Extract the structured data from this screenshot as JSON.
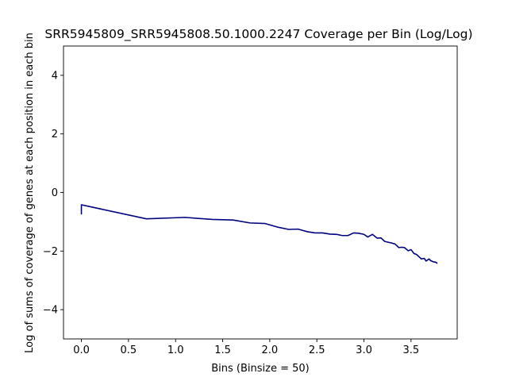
{
  "chart_data": {
    "type": "line",
    "title": "SRR5945809_SRR5945808.50.1000.2247 Coverage per Bin (Log/Log)",
    "xlabel": "Bins (Binsize = 50)",
    "ylabel": "Log of sums of coverage of genes at each position in each bin",
    "xlim": [
      -0.19,
      3.99
    ],
    "ylim": [
      -5,
      5
    ],
    "xticks": [
      0.0,
      0.5,
      1.0,
      1.5,
      2.0,
      2.5,
      3.0,
      3.5
    ],
    "xtick_labels": [
      "0.0",
      "0.5",
      "1.0",
      "1.5",
      "2.0",
      "2.5",
      "3.0",
      "3.5"
    ],
    "yticks": [
      -4,
      -2,
      0,
      2,
      4
    ],
    "ytick_labels": [
      "−4",
      "−2",
      "0",
      "2",
      "4"
    ],
    "grid": false,
    "line_color": "#000080",
    "series": [
      {
        "x": [
          0.0,
          0.0,
          0.69,
          1.1,
          1.39,
          1.61,
          1.79,
          1.95,
          2.08,
          2.2,
          2.3,
          2.4,
          2.48,
          2.56,
          2.64,
          2.71,
          2.77,
          2.83,
          2.89,
          2.94,
          3.0,
          3.04,
          3.09,
          3.14,
          3.18,
          3.22,
          3.26,
          3.3,
          3.33,
          3.37,
          3.4,
          3.43,
          3.47,
          3.5,
          3.53,
          3.56,
          3.58,
          3.61,
          3.64,
          3.66,
          3.69,
          3.71,
          3.74,
          3.76,
          3.78
        ],
        "y": [
          -0.75,
          -0.42,
          -0.9,
          -0.85,
          -0.92,
          -0.94,
          -1.04,
          -1.06,
          -1.18,
          -1.26,
          -1.25,
          -1.34,
          -1.38,
          -1.38,
          -1.42,
          -1.43,
          -1.47,
          -1.47,
          -1.38,
          -1.39,
          -1.43,
          -1.52,
          -1.43,
          -1.56,
          -1.55,
          -1.67,
          -1.7,
          -1.73,
          -1.76,
          -1.88,
          -1.87,
          -1.88,
          -1.99,
          -1.95,
          -2.08,
          -2.12,
          -2.18,
          -2.27,
          -2.25,
          -2.34,
          -2.27,
          -2.33,
          -2.37,
          -2.38,
          -2.42
        ]
      }
    ]
  }
}
